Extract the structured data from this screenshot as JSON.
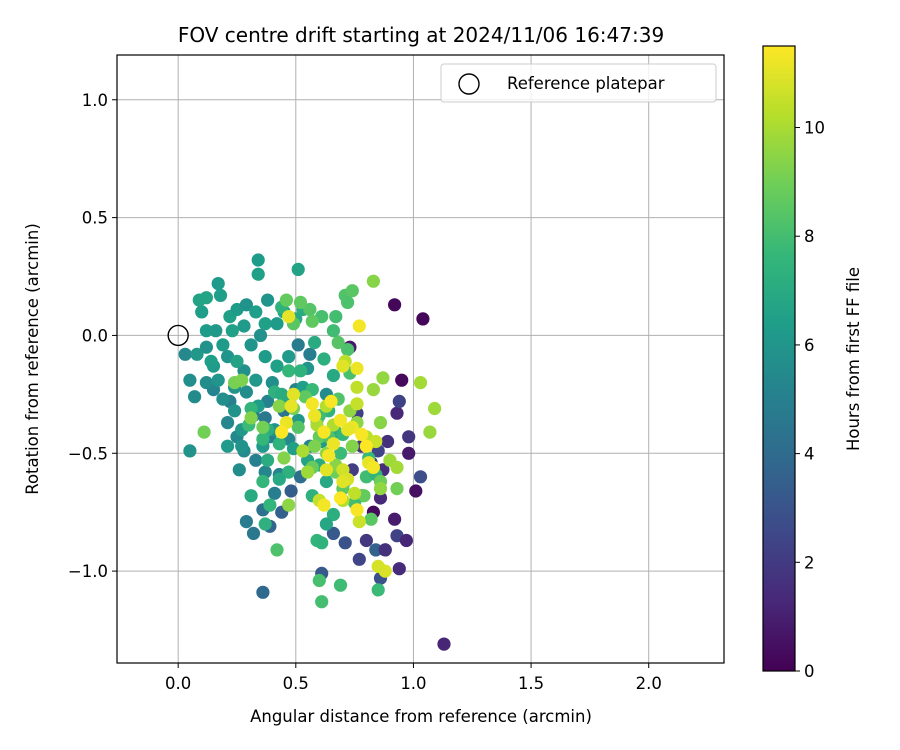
{
  "chart_data": {
    "type": "scatter",
    "title": "FOV centre drift starting at 2024/11/06 16:47:39",
    "xlabel": "Angular distance from reference (arcmin)",
    "ylabel": "Rotation from reference (arcmin)",
    "xlim": [
      -0.26,
      2.32
    ],
    "ylim": [
      -1.39,
      1.19
    ],
    "xticks": [
      0.0,
      0.5,
      1.0,
      1.5,
      2.0
    ],
    "xtick_labels": [
      "0.0",
      "0.5",
      "1.0",
      "1.5",
      "2.0"
    ],
    "yticks": [
      1.0,
      0.5,
      0.0,
      -0.5,
      -1.0
    ],
    "ytick_labels": [
      "1.0",
      "0.5",
      "0.0",
      "−0.5",
      "−1.0"
    ],
    "grid": true,
    "legend": {
      "position": "top-right",
      "entries": [
        "Reference platepar"
      ]
    },
    "reference_point": {
      "x": 0.0,
      "y": 0.0
    },
    "colorbar": {
      "label": "Hours from first FF file",
      "colormap": "viridis",
      "range": [
        0,
        11.5
      ],
      "ticks": [
        0,
        2,
        4,
        6,
        8,
        10
      ],
      "tick_labels": [
        "0",
        "2",
        "4",
        "6",
        "8",
        "10"
      ]
    },
    "colormap_stops": [
      "#440154",
      "#482878",
      "#3e4989",
      "#31688e",
      "#26828e",
      "#1f9e89",
      "#35b779",
      "#6ece58",
      "#b5de2b",
      "#fde725"
    ],
    "point_color_unit": "hours",
    "points": [
      [
        0.92,
        0.13,
        0.2
      ],
      [
        1.04,
        0.07,
        0.2
      ],
      [
        0.95,
        -0.19,
        0.3
      ],
      [
        0.93,
        -0.33,
        1.3
      ],
      [
        0.94,
        -0.28,
        2.3
      ],
      [
        0.98,
        -0.43,
        1.8
      ],
      [
        0.98,
        -0.5,
        0.8
      ],
      [
        1.03,
        -0.6,
        2.8
      ],
      [
        1.01,
        -0.66,
        0.5
      ],
      [
        0.92,
        -0.78,
        0.9
      ],
      [
        0.93,
        -0.85,
        2.3
      ],
      [
        0.97,
        -0.87,
        1.2
      ],
      [
        0.94,
        -0.99,
        1.4
      ],
      [
        0.88,
        -0.91,
        1.7
      ],
      [
        0.86,
        -1.03,
        2.9
      ],
      [
        0.83,
        -0.75,
        0.3
      ],
      [
        0.84,
        -0.91,
        3.6
      ],
      [
        0.88,
        -0.91,
        1.6
      ],
      [
        0.71,
        -0.88,
        2.9
      ],
      [
        0.77,
        -0.95,
        2.4
      ],
      [
        0.8,
        -0.87,
        1.9
      ],
      [
        0.66,
        -0.84,
        3.2
      ],
      [
        0.61,
        -1.01,
        3.2
      ],
      [
        0.74,
        -0.57,
        2.1
      ],
      [
        0.82,
        -0.54,
        1.8
      ],
      [
        0.89,
        -0.45,
        1.6
      ],
      [
        0.76,
        -0.33,
        2.2
      ],
      [
        0.78,
        -0.47,
        1.9
      ],
      [
        0.87,
        -0.57,
        1.5
      ],
      [
        0.86,
        -0.69,
        1.3
      ],
      [
        0.85,
        -0.49,
        2.4
      ],
      [
        1.13,
        -1.31,
        1.2
      ],
      [
        0.36,
        -1.09,
        3.9
      ],
      [
        0.73,
        -0.05,
        0.8
      ],
      [
        0.39,
        -0.81,
        3.8
      ],
      [
        0.32,
        -0.84,
        4.6
      ],
      [
        0.44,
        -0.75,
        3.5
      ],
      [
        0.52,
        -0.6,
        4.2
      ],
      [
        0.48,
        -0.66,
        3.4
      ],
      [
        0.29,
        -0.79,
        4.8
      ],
      [
        0.36,
        -0.74,
        4.3
      ],
      [
        0.41,
        -0.67,
        4.9
      ],
      [
        0.47,
        -0.44,
        5.4
      ],
      [
        0.43,
        -0.59,
        5.2
      ],
      [
        0.56,
        -0.47,
        5.2
      ],
      [
        0.51,
        -0.04,
        4.8
      ],
      [
        0.5,
        -0.23,
        5.1
      ],
      [
        0.63,
        -0.25,
        5.5
      ],
      [
        0.56,
        -0.08,
        4.9
      ],
      [
        0.39,
        -0.43,
        5.0
      ],
      [
        0.37,
        -0.58,
        5.3
      ],
      [
        0.33,
        -0.53,
        5.0
      ],
      [
        0.28,
        -0.49,
        5.5
      ],
      [
        0.26,
        -0.57,
        5.6
      ],
      [
        0.37,
        -0.35,
        4.6
      ],
      [
        0.45,
        -0.32,
        4.5
      ],
      [
        0.38,
        -0.28,
        5.1
      ],
      [
        0.32,
        -0.34,
        4.8
      ],
      [
        0.25,
        -0.43,
        5.4
      ],
      [
        0.21,
        -0.37,
        5.3
      ],
      [
        0.22,
        -0.28,
        5.0
      ],
      [
        0.15,
        -0.23,
        5.2
      ],
      [
        0.12,
        -0.2,
        5.6
      ],
      [
        0.05,
        -0.19,
        5.7
      ],
      [
        0.03,
        -0.08,
        5.4
      ],
      [
        0.07,
        -0.26,
        5.5
      ],
      [
        0.05,
        -0.49,
        5.9
      ],
      [
        0.08,
        -0.08,
        6.1
      ],
      [
        0.12,
        -0.05,
        5.9
      ],
      [
        0.15,
        -0.13,
        6.2
      ],
      [
        0.21,
        -0.09,
        6.0
      ],
      [
        0.19,
        -0.04,
        6.3
      ],
      [
        0.23,
        0.02,
        6.5
      ],
      [
        0.16,
        0.02,
        6.1
      ],
      [
        0.12,
        0.02,
        6.3
      ],
      [
        0.1,
        0.1,
        6.4
      ],
      [
        0.09,
        0.15,
        6.6
      ],
      [
        0.12,
        0.16,
        6.7
      ],
      [
        0.17,
        0.22,
        6.2
      ],
      [
        0.18,
        0.17,
        6.4
      ],
      [
        0.22,
        0.08,
        6.5
      ],
      [
        0.25,
        0.11,
        6.3
      ],
      [
        0.29,
        0.13,
        5.9
      ],
      [
        0.33,
        0.1,
        6.4
      ],
      [
        0.28,
        0.04,
        6.2
      ],
      [
        0.31,
        -0.04,
        6.0
      ],
      [
        0.35,
        0.0,
        5.8
      ],
      [
        0.37,
        -0.09,
        6.3
      ],
      [
        0.42,
        -0.13,
        6.5
      ],
      [
        0.4,
        -0.2,
        5.7
      ],
      [
        0.33,
        -0.19,
        6.1
      ],
      [
        0.28,
        -0.15,
        5.8
      ],
      [
        0.25,
        -0.11,
        6.6
      ],
      [
        0.24,
        -0.22,
        6.0
      ],
      [
        0.29,
        -0.24,
        5.6
      ],
      [
        0.24,
        -0.32,
        5.9
      ],
      [
        0.19,
        -0.27,
        5.7
      ],
      [
        0.17,
        -0.19,
        6.0
      ],
      [
        0.14,
        -0.11,
        6.4
      ],
      [
        0.27,
        -0.4,
        6.1
      ],
      [
        0.21,
        -0.47,
        6.2
      ],
      [
        0.27,
        -0.47,
        5.9
      ],
      [
        0.36,
        -0.47,
        6.2
      ],
      [
        0.41,
        -0.4,
        6.0
      ],
      [
        0.34,
        -0.3,
        6.4
      ],
      [
        0.34,
        0.26,
        6.5
      ],
      [
        0.34,
        0.32,
        6.3
      ],
      [
        0.38,
        0.15,
        6.0
      ],
      [
        0.45,
        0.1,
        6.7
      ],
      [
        0.5,
        0.07,
        6.9
      ],
      [
        0.37,
        0.05,
        6.5
      ],
      [
        0.42,
        0.05,
        6.3
      ],
      [
        0.47,
        -0.09,
        6.2
      ],
      [
        0.55,
        -0.14,
        6.0
      ],
      [
        0.53,
        -0.22,
        6.4
      ],
      [
        0.46,
        -0.28,
        6.8
      ],
      [
        0.51,
        -0.36,
        6.1
      ],
      [
        0.59,
        -0.36,
        6.5
      ],
      [
        0.49,
        -0.48,
        6.5
      ],
      [
        0.55,
        -0.53,
        6.7
      ],
      [
        0.61,
        -0.45,
        6.3
      ],
      [
        0.53,
        0.11,
        7.1
      ],
      [
        0.51,
        0.28,
        6.6
      ],
      [
        0.44,
        0.12,
        7.4
      ],
      [
        0.58,
        -0.03,
        7.0
      ],
      [
        0.62,
        -0.1,
        7.2
      ],
      [
        0.66,
        -0.17,
        6.9
      ],
      [
        0.64,
        -0.32,
        7.4
      ],
      [
        0.67,
        -0.41,
        7.0
      ],
      [
        0.6,
        -0.55,
        7.1
      ],
      [
        0.63,
        -0.62,
        6.9
      ],
      [
        0.57,
        -0.68,
        7.3
      ],
      [
        0.66,
        -0.76,
        7.2
      ],
      [
        0.59,
        -0.87,
        7.5
      ],
      [
        0.61,
        -0.88,
        7.4
      ],
      [
        0.63,
        -0.8,
        6.8
      ],
      [
        0.47,
        -0.58,
        7.3
      ],
      [
        0.43,
        -0.46,
        7.4
      ],
      [
        0.38,
        -0.4,
        7.2
      ],
      [
        0.38,
        -0.53,
        7.1
      ],
      [
        0.43,
        -0.61,
        6.9
      ],
      [
        0.39,
        -0.72,
        7.5
      ],
      [
        0.37,
        -0.8,
        7.3
      ],
      [
        0.31,
        -0.68,
        7.0
      ],
      [
        0.36,
        -0.62,
        7.6
      ],
      [
        0.36,
        -0.44,
        7.6
      ],
      [
        0.3,
        -0.38,
        7.8
      ],
      [
        0.31,
        -0.31,
        7.5
      ],
      [
        0.41,
        -0.24,
        7.3
      ],
      [
        0.44,
        -0.25,
        7.1
      ],
      [
        0.47,
        -0.15,
        7.6
      ],
      [
        0.52,
        -0.15,
        7.4
      ],
      [
        0.57,
        -0.23,
        7.7
      ],
      [
        0.6,
        -0.34,
        7.9
      ],
      [
        0.7,
        -0.42,
        7.6
      ],
      [
        0.69,
        -0.5,
        7.8
      ],
      [
        0.71,
        -0.62,
        7.4
      ],
      [
        0.75,
        -0.71,
        8.0
      ],
      [
        0.78,
        -0.68,
        7.6
      ],
      [
        0.8,
        -0.6,
        7.9
      ],
      [
        0.81,
        -0.52,
        7.7
      ],
      [
        0.84,
        -0.59,
        7.5
      ],
      [
        0.85,
        -1.08,
        7.8
      ],
      [
        0.69,
        -1.06,
        7.9
      ],
      [
        0.61,
        -1.13,
        8.0
      ],
      [
        0.6,
        -1.04,
        8.1
      ],
      [
        0.42,
        -0.91,
        8.2
      ],
      [
        0.68,
        -0.27,
        8.3
      ],
      [
        0.73,
        -0.16,
        8.1
      ],
      [
        0.72,
        -0.06,
        8.2
      ],
      [
        0.68,
        -0.03,
        8.4
      ],
      [
        0.66,
        0.02,
        7.9
      ],
      [
        0.67,
        0.08,
        8.0
      ],
      [
        0.71,
        0.17,
        8.3
      ],
      [
        0.74,
        0.19,
        8.5
      ],
      [
        0.72,
        0.14,
        8.2
      ],
      [
        0.61,
        0.08,
        8.1
      ],
      [
        0.57,
        0.06,
        8.6
      ],
      [
        0.56,
        0.11,
        8.4
      ],
      [
        0.52,
        0.14,
        8.6
      ],
      [
        0.46,
        0.15,
        8.7
      ],
      [
        0.49,
        0.05,
        8.5
      ],
      [
        0.54,
        -0.26,
        8.6
      ],
      [
        0.51,
        -0.39,
        8.4
      ],
      [
        0.6,
        -0.43,
        8.7
      ],
      [
        0.64,
        -0.43,
        8.2
      ],
      [
        0.57,
        -0.56,
        8.8
      ],
      [
        0.67,
        -0.58,
        8.9
      ],
      [
        0.7,
        -0.65,
        8.6
      ],
      [
        0.79,
        -0.68,
        8.7
      ],
      [
        0.86,
        -0.62,
        8.9
      ],
      [
        0.82,
        -0.78,
        8.5
      ],
      [
        0.93,
        -0.65,
        9.0
      ],
      [
        0.24,
        -0.2,
        9.1
      ],
      [
        0.11,
        -0.41,
        9.0
      ],
      [
        0.27,
        -0.19,
        9.2
      ],
      [
        0.31,
        -0.35,
        9.3
      ],
      [
        0.36,
        -0.39,
        9.0
      ],
      [
        0.43,
        -0.3,
        9.4
      ],
      [
        0.49,
        -0.31,
        9.1
      ],
      [
        0.45,
        -0.52,
        9.3
      ],
      [
        0.58,
        -0.47,
        9.2
      ],
      [
        0.63,
        -0.5,
        9.5
      ],
      [
        0.67,
        -0.55,
        9.4
      ],
      [
        0.74,
        -0.47,
        9.3
      ],
      [
        0.73,
        -0.32,
        9.6
      ],
      [
        0.76,
        -0.37,
        9.5
      ],
      [
        0.83,
        -0.23,
        9.7
      ],
      [
        0.87,
        -0.18,
        9.6
      ],
      [
        0.86,
        -0.37,
        9.4
      ],
      [
        0.9,
        -0.53,
        9.8
      ],
      [
        0.93,
        -0.56,
        9.9
      ],
      [
        0.86,
        -0.65,
        9.6
      ],
      [
        1.03,
        -0.2,
        9.9
      ],
      [
        1.09,
        -0.31,
        9.8
      ],
      [
        1.07,
        -0.41,
        9.7
      ],
      [
        0.83,
        0.23,
        9.4
      ],
      [
        0.47,
        -0.72,
        9.5
      ],
      [
        0.55,
        -0.58,
        9.8
      ],
      [
        0.53,
        -0.49,
        10.0
      ],
      [
        0.66,
        -0.38,
        10.1
      ],
      [
        0.63,
        -0.3,
        10.2
      ],
      [
        0.59,
        -0.38,
        10.0
      ],
      [
        0.71,
        -0.11,
        10.3
      ],
      [
        0.76,
        -0.22,
        10.4
      ],
      [
        0.76,
        -0.29,
        10.5
      ],
      [
        0.8,
        -0.43,
        10.3
      ],
      [
        0.84,
        -0.45,
        10.6
      ],
      [
        0.7,
        -0.7,
        10.2
      ],
      [
        0.75,
        -0.67,
        10.4
      ],
      [
        0.6,
        -0.7,
        10.5
      ],
      [
        0.7,
        -0.57,
        10.7
      ],
      [
        0.72,
        -0.61,
        10.8
      ],
      [
        0.77,
        -0.79,
        10.6
      ],
      [
        0.88,
        -1.0,
        10.9
      ],
      [
        0.85,
        -0.98,
        10.8
      ],
      [
        0.7,
        -0.62,
        11.0
      ],
      [
        0.81,
        -0.54,
        11.1
      ],
      [
        0.83,
        -0.56,
        11.3
      ],
      [
        0.74,
        -0.39,
        11.2
      ],
      [
        0.78,
        -0.42,
        11.4
      ],
      [
        0.72,
        -0.4,
        11.1
      ],
      [
        0.66,
        -0.46,
        11.2
      ],
      [
        0.64,
        -0.51,
        11.3
      ],
      [
        0.63,
        -0.57,
        11.0
      ],
      [
        0.62,
        -0.41,
        11.4
      ],
      [
        0.58,
        -0.34,
        11.2
      ],
      [
        0.57,
        -0.29,
        11.3
      ],
      [
        0.49,
        -0.25,
        11.0
      ],
      [
        0.48,
        -0.3,
        11.1
      ],
      [
        0.46,
        -0.37,
        11.2
      ],
      [
        0.44,
        -0.41,
        11.5
      ],
      [
        0.65,
        -0.28,
        11.4
      ],
      [
        0.69,
        -0.36,
        11.3
      ],
      [
        0.7,
        -0.13,
        11.0
      ],
      [
        0.76,
        -0.14,
        11.2
      ],
      [
        0.77,
        0.04,
        11.3
      ],
      [
        0.47,
        0.08,
        11.1
      ],
      [
        0.76,
        -0.74,
        11.4
      ],
      [
        0.69,
        -0.69,
        11.5
      ],
      [
        0.62,
        -0.72,
        11.3
      ],
      [
        0.8,
        -0.47,
        11.5
      ]
    ]
  }
}
